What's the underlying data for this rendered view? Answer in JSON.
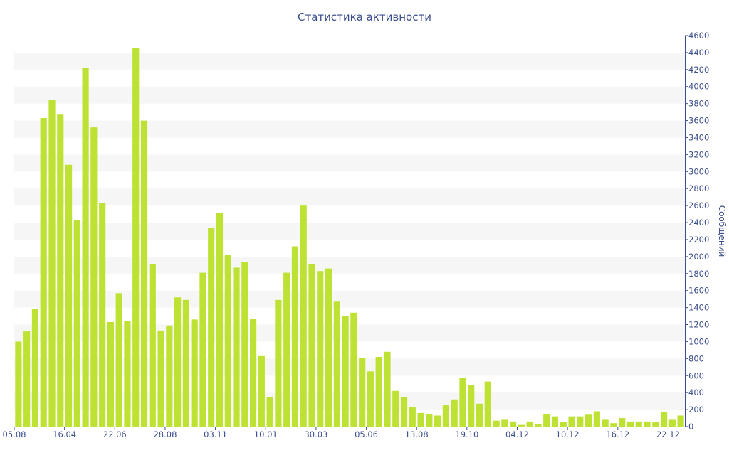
{
  "chart_data": {
    "type": "bar",
    "title": "Статистика активности",
    "ylabel": "Сообщений",
    "xlabel": "",
    "ylim": [
      0,
      4600
    ],
    "y_ticks": [
      0,
      200,
      400,
      600,
      800,
      1000,
      1200,
      1400,
      1600,
      1800,
      2000,
      2200,
      2400,
      2600,
      2800,
      3000,
      3200,
      3400,
      3600,
      3800,
      4000,
      4200,
      4400,
      4600
    ],
    "y_axis_side": "right",
    "grid": "alternating horizontal bands",
    "colors": {
      "bar": "#bde234",
      "band": "#f6f6f6",
      "text": "#3b4e8c",
      "axis": "#3b4e8c"
    },
    "x_tick_labels": [
      {
        "index": 0,
        "label": "05.08"
      },
      {
        "index": 6,
        "label": "16.04"
      },
      {
        "index": 12,
        "label": "22.06"
      },
      {
        "index": 18,
        "label": "28.08"
      },
      {
        "index": 24,
        "label": "03.11"
      },
      {
        "index": 30,
        "label": "10.01"
      },
      {
        "index": 36,
        "label": "30.03"
      },
      {
        "index": 42,
        "label": "05.06"
      },
      {
        "index": 48,
        "label": "13.08"
      },
      {
        "index": 54,
        "label": "19.10"
      },
      {
        "index": 60,
        "label": "04.12"
      },
      {
        "index": 66,
        "label": "10.12"
      },
      {
        "index": 72,
        "label": "16.12"
      },
      {
        "index": 78,
        "label": "22.12"
      }
    ],
    "values": [
      1000,
      1120,
      1380,
      3630,
      3840,
      3670,
      3080,
      2430,
      4220,
      3520,
      2630,
      1230,
      1570,
      1240,
      4450,
      3600,
      1910,
      1130,
      1190,
      1520,
      1490,
      1260,
      1810,
      2340,
      2510,
      2020,
      1870,
      1940,
      1270,
      830,
      350,
      1490,
      1810,
      2120,
      2600,
      1910,
      1830,
      1860,
      1470,
      1300,
      1340,
      810,
      650,
      820,
      880,
      420,
      350,
      230,
      160,
      150,
      130,
      250,
      320,
      570,
      490,
      270,
      530,
      70,
      80,
      60,
      20,
      60,
      30,
      150,
      120,
      50,
      120,
      120,
      140,
      180,
      80,
      40,
      100,
      60,
      60,
      60,
      50,
      170,
      80,
      130
    ]
  }
}
